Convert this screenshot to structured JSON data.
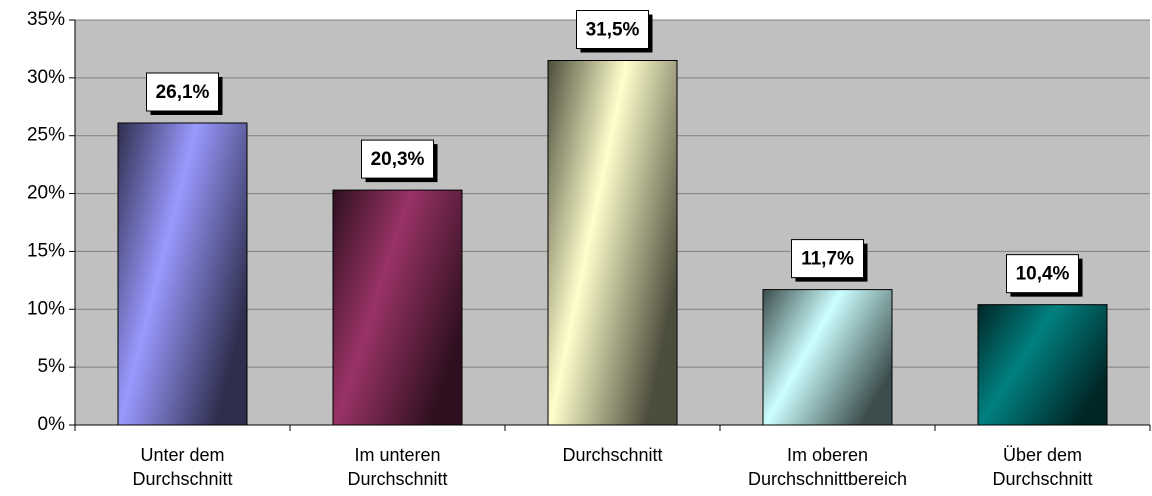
{
  "chart_data": {
    "type": "bar",
    "categories": [
      "Unter dem Durchschnitt",
      "Im unteren Durchschnitt",
      "Durchschnitt",
      "Im oberen Durchschnittbereich",
      "Über dem Durchschnitt"
    ],
    "values": [
      26.1,
      20.3,
      31.5,
      11.7,
      10.4
    ],
    "value_labels": [
      "26,1%",
      "20,3%",
      "31,5%",
      "11,7%",
      "10,4%"
    ],
    "colors": [
      "#9999ff",
      "#993366",
      "#ffffcc",
      "#ccffff",
      "#008080"
    ],
    "ylim": [
      0,
      35
    ],
    "yticks": [
      {
        "value": 0,
        "label": "0%"
      },
      {
        "value": 5,
        "label": "5%"
      },
      {
        "value": 10,
        "label": "10%"
      },
      {
        "value": 15,
        "label": "15%"
      },
      {
        "value": 20,
        "label": "20%"
      },
      {
        "value": 25,
        "label": "25%"
      },
      {
        "value": 30,
        "label": "30%"
      },
      {
        "value": 35,
        "label": "35%"
      }
    ],
    "grid": true
  }
}
